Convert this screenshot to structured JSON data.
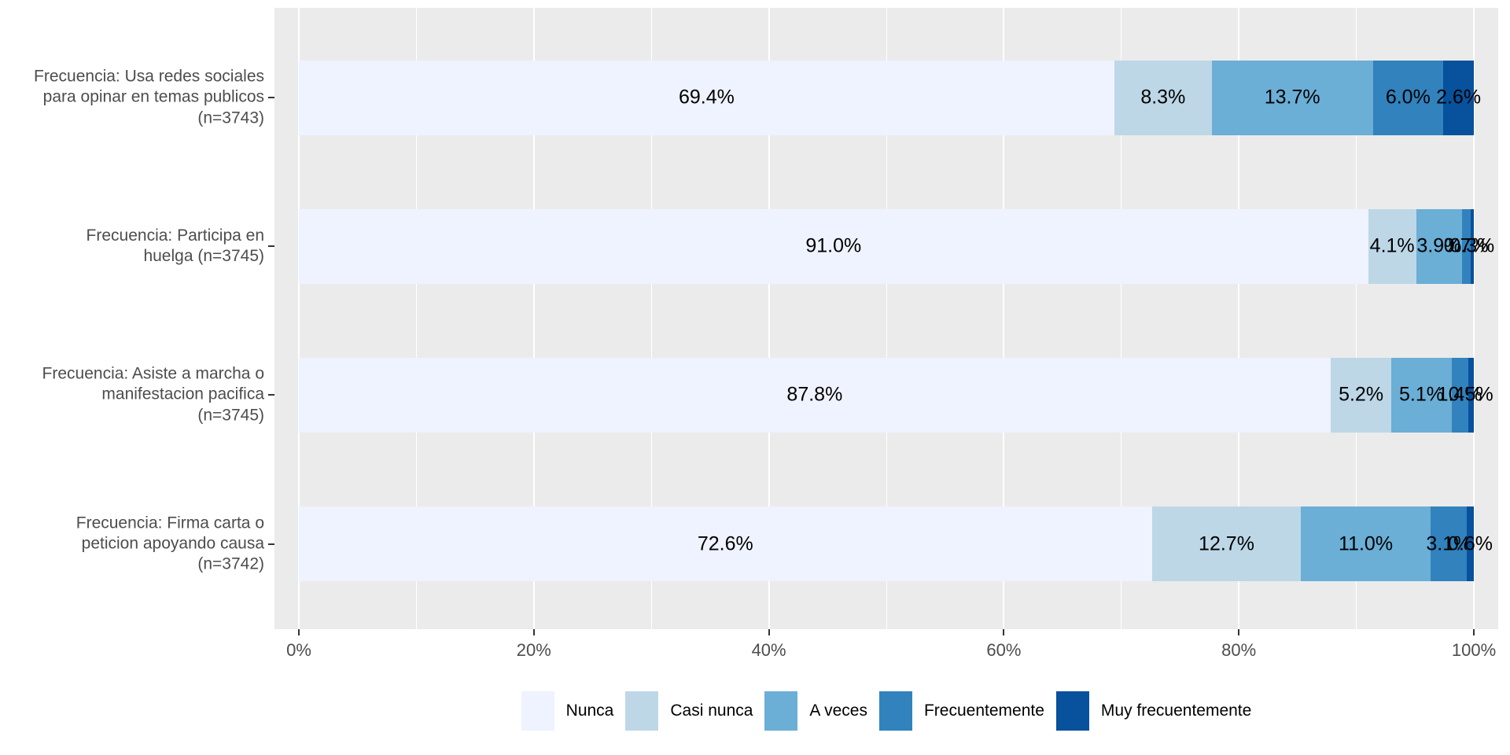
{
  "chart_data": {
    "type": "bar",
    "orientation": "horizontal",
    "stacked": true,
    "title": "",
    "xlabel": "",
    "ylabel": "",
    "grid": true,
    "panel_bg": "#EBEBEB",
    "grid_color": "#FFFFFF",
    "axis_text_color": "#4D4D4D",
    "bar_label_color": "#000000",
    "series": [
      "Nunca",
      "Casi nunca",
      "A veces",
      "Frecuentemente",
      "Muy frecuentemente"
    ],
    "colors": [
      "#EFF3FF",
      "#BDD7E7",
      "#6BAED6",
      "#3182BD",
      "#08519C"
    ],
    "rows": [
      {
        "label_lines": [
          "Frecuencia: Usa redes sociales",
          "para opinar en temas publicos",
          "(n=3743)"
        ],
        "values": [
          69.4,
          8.3,
          13.7,
          6.0,
          2.6
        ],
        "labels": [
          "69.4%",
          "8.3%",
          "13.7%",
          "6.0%",
          "2.6%"
        ]
      },
      {
        "label_lines": [
          "Frecuencia: Participa en",
          "huelga (n=3745)"
        ],
        "values": [
          91.0,
          4.1,
          3.9,
          0.7,
          0.3
        ],
        "labels": [
          "91.0%",
          "4.1%",
          "3.9%",
          "0.7%",
          "0.3%"
        ]
      },
      {
        "label_lines": [
          "Frecuencia: Asiste a marcha o",
          "manifestacion pacifica",
          "(n=3745)"
        ],
        "values": [
          87.8,
          5.2,
          5.1,
          1.4,
          0.5
        ],
        "labels": [
          "87.8%",
          "5.2%",
          "5.1%",
          "1.4%",
          "0.5%"
        ]
      },
      {
        "label_lines": [
          "Frecuencia: Firma carta o",
          "peticion apoyando causa",
          "(n=3742)"
        ],
        "values": [
          72.6,
          12.7,
          11.0,
          3.1,
          0.6
        ],
        "labels": [
          "72.6%",
          "12.7%",
          "11.0%",
          "3.1%",
          "0.6%"
        ]
      }
    ],
    "x_axis": {
      "range": [
        0,
        100
      ],
      "tick_values": [
        0,
        20,
        40,
        60,
        80,
        100
      ],
      "tick_labels": [
        "0%",
        "20%",
        "40%",
        "60%",
        "80%",
        "100%"
      ],
      "minor_step": 10
    },
    "legend": {
      "position": "bottom",
      "items": [
        {
          "label": "Nunca",
          "color": "#EFF3FF"
        },
        {
          "label": "Casi nunca",
          "color": "#BDD7E7"
        },
        {
          "label": "A veces",
          "color": "#6BAED6"
        },
        {
          "label": "Frecuentemente",
          "color": "#3182BD"
        },
        {
          "label": "Muy frecuentemente",
          "color": "#08519C"
        }
      ]
    }
  }
}
